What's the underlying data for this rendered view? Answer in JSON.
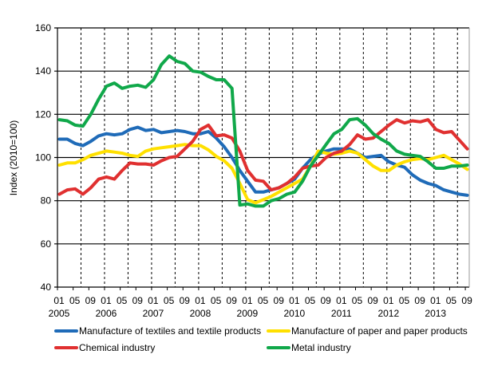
{
  "chart_data": {
    "type": "line",
    "title": "",
    "xlabel": "",
    "ylabel": "Index (2010=100)",
    "ylim": [
      40,
      160
    ],
    "yticks": [
      40,
      60,
      80,
      100,
      120,
      140,
      160
    ],
    "xrange": [
      "2005-01",
      "2013-09"
    ],
    "xtick_months": [
      "01",
      "05",
      "09"
    ],
    "xtick_years": [
      "2005",
      "2006",
      "2007",
      "2008",
      "2009",
      "2010",
      "2011",
      "2012",
      "2013"
    ],
    "grid": "horizontal solid, vertical dashed every 6 months",
    "legend_placement": "bottom",
    "x": [
      "2005-01",
      "2005-03",
      "2005-05",
      "2005-07",
      "2005-09",
      "2005-11",
      "2006-01",
      "2006-03",
      "2006-05",
      "2006-07",
      "2006-09",
      "2006-11",
      "2007-01",
      "2007-03",
      "2007-05",
      "2007-07",
      "2007-09",
      "2007-11",
      "2008-01",
      "2008-03",
      "2008-05",
      "2008-07",
      "2008-09",
      "2008-11",
      "2009-01",
      "2009-03",
      "2009-05",
      "2009-07",
      "2009-09",
      "2009-11",
      "2010-01",
      "2010-03",
      "2010-05",
      "2010-07",
      "2010-09",
      "2010-11",
      "2011-01",
      "2011-03",
      "2011-05",
      "2011-07",
      "2011-09",
      "2011-11",
      "2012-01",
      "2012-03",
      "2012-05",
      "2012-07",
      "2012-09",
      "2012-11",
      "2013-01",
      "2013-03",
      "2013-05",
      "2013-07",
      "2013-09"
    ],
    "series": [
      {
        "name": "Manufacture of textiles and textile products",
        "color": "#1f6bb8",
        "values": [
          108.5,
          108.5,
          106.5,
          105.5,
          107.5,
          110,
          111,
          110.5,
          111,
          113,
          114,
          112.5,
          113,
          111.5,
          112,
          112.5,
          112,
          111,
          111,
          112,
          109,
          105,
          100,
          94,
          89,
          84,
          84,
          85,
          86,
          88,
          90,
          95,
          99,
          101.5,
          103,
          104,
          104,
          104,
          102,
          100,
          100.5,
          101,
          98,
          96.5,
          95.5,
          92,
          89.5,
          88,
          87,
          85,
          84,
          83,
          82.5
        ]
      },
      {
        "name": "Manufacture of paper and paper products",
        "color": "#ffe000",
        "values": [
          96.5,
          97.5,
          97.5,
          99,
          101,
          102,
          103,
          102.5,
          102,
          101,
          100.5,
          103,
          104,
          104.5,
          105,
          105.5,
          106,
          105.5,
          105.5,
          103.5,
          100.5,
          98.5,
          95,
          88,
          80.5,
          79,
          80.5,
          82,
          84,
          86,
          88,
          90,
          96,
          103,
          102,
          101.5,
          102,
          103,
          102,
          99,
          96,
          94,
          94,
          96.5,
          98,
          99,
          99.5,
          99,
          100,
          101,
          99,
          97,
          94.5
        ]
      },
      {
        "name": "Chemical industry",
        "color": "#e03030",
        "values": [
          83,
          85,
          85.5,
          83,
          86,
          90,
          91,
          90,
          94,
          97.5,
          97,
          97,
          96.5,
          98.5,
          100,
          100.5,
          104,
          107.5,
          113,
          115,
          110,
          110.5,
          109,
          103,
          94,
          89.5,
          89,
          85,
          86,
          88,
          91,
          95,
          96,
          96.5,
          100,
          102,
          103,
          106,
          110.5,
          108.5,
          109,
          112,
          115,
          117.5,
          116,
          117,
          116.5,
          117.5,
          113,
          111.5,
          112,
          108,
          104
        ]
      },
      {
        "name": "Metal industry",
        "color": "#10a84a",
        "values": [
          117.5,
          117,
          115,
          114.5,
          120,
          127,
          133,
          134.5,
          132,
          133,
          133.5,
          132.5,
          136,
          143,
          147,
          144.5,
          143.5,
          140,
          139.5,
          137.5,
          136,
          136,
          132,
          78,
          78.5,
          77.5,
          77.5,
          80,
          81,
          83,
          84,
          89,
          96,
          101,
          106,
          111,
          113,
          117.5,
          118,
          115,
          111,
          108.5,
          106.5,
          103,
          101.5,
          101,
          100.5,
          98,
          95,
          95,
          96,
          96,
          96.5
        ]
      }
    ]
  }
}
